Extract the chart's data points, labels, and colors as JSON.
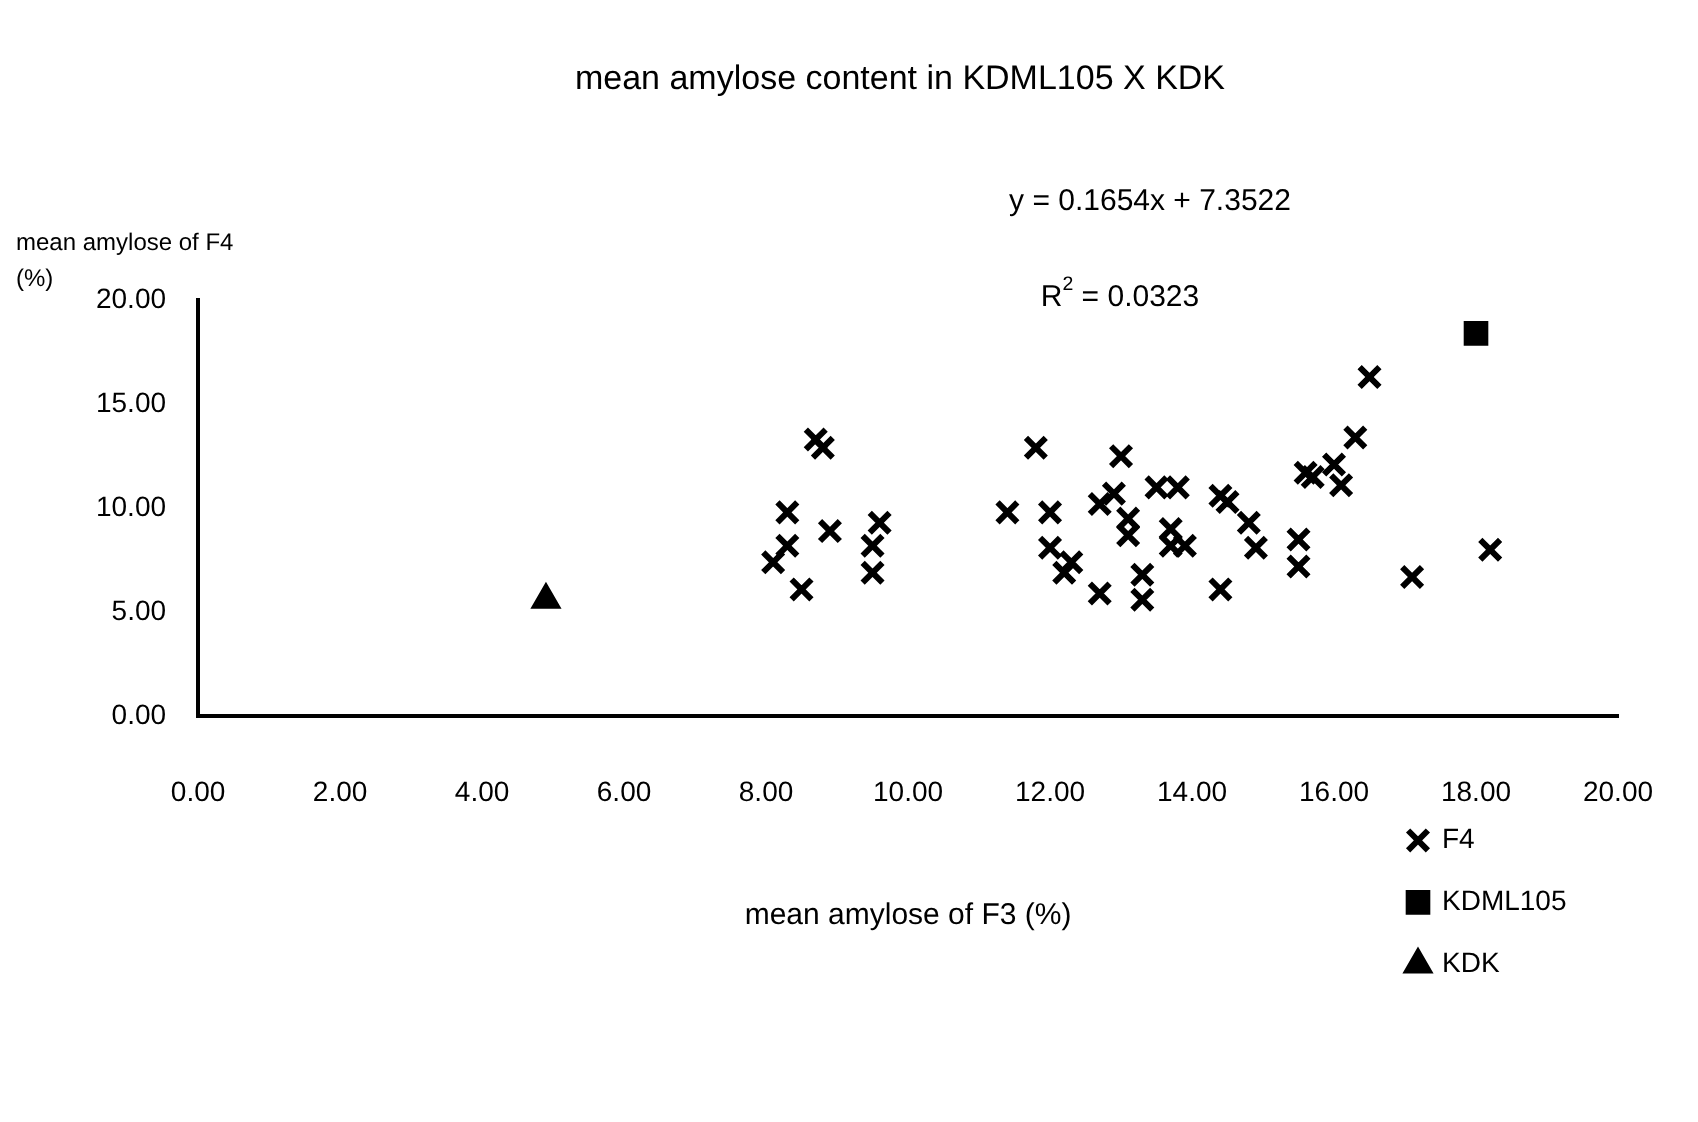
{
  "chart_data": {
    "type": "scatter",
    "title": "mean amylose content in KDML105 X KDK",
    "xlabel": "mean amylose of F3 (%)",
    "ylabel": "mean amylose of F4 (%)",
    "annotations": [
      "y = 0.1654x + 7.3522",
      "R$^{2}$ = 0.0323"
    ],
    "xlim": [
      0,
      20
    ],
    "xticks": [
      {
        "value": 0,
        "label": "0.00"
      },
      {
        "value": 2,
        "label": "2.00"
      },
      {
        "value": 4,
        "label": "4.00"
      },
      {
        "value": 6,
        "label": "6.00"
      },
      {
        "value": 8,
        "label": "8.00"
      },
      {
        "value": 10,
        "label": "10.00"
      },
      {
        "value": 12,
        "label": "12.00"
      },
      {
        "value": 14,
        "label": "14.00"
      },
      {
        "value": 16,
        "label": "16.00"
      },
      {
        "value": 18,
        "label": "18.00"
      },
      {
        "value": 20,
        "label": "20.00"
      }
    ],
    "ylim": [
      0,
      20
    ],
    "yticks": [
      {
        "value": 0,
        "label": "0.00"
      },
      {
        "value": 5,
        "label": "5.00"
      },
      {
        "value": 10,
        "label": "10.00"
      },
      {
        "value": 15,
        "label": "15.00"
      },
      {
        "value": 20,
        "label": "20.00"
      }
    ],
    "grid": false,
    "legend": "bottom right",
    "series": [
      {
        "name": "F4",
        "color": "#000000",
        "marker": "cross",
        "x": [
          8.7,
          8.8,
          8.3,
          8.9,
          9.6,
          9.5,
          9.5,
          8.3,
          8.1,
          8.5,
          11.8,
          11.4,
          12.0,
          13.0,
          12.0,
          12.3,
          12.2,
          12.7,
          13.3,
          13.3,
          14.4,
          12.7,
          12.9,
          13.1,
          13.1,
          13.5,
          13.8,
          13.7,
          13.7,
          13.9,
          14.4,
          14.5,
          16.5,
          16.3,
          15.6,
          15.7,
          16.0,
          16.1,
          14.8,
          14.9,
          15.5,
          15.5,
          17.1,
          18.2
        ],
        "values": [
          13.3,
          12.9,
          9.8,
          8.9,
          9.3,
          8.2,
          6.9,
          8.2,
          7.4,
          6.1,
          12.9,
          9.8,
          9.8,
          12.5,
          8.1,
          7.4,
          6.9,
          5.9,
          6.8,
          5.6,
          6.1,
          10.2,
          10.7,
          9.5,
          8.7,
          11.0,
          11.0,
          9.0,
          8.2,
          8.2,
          10.6,
          10.3,
          16.3,
          13.4,
          11.7,
          11.5,
          12.1,
          11.1,
          9.3,
          8.1,
          8.5,
          7.2,
          6.7,
          8.0
        ]
      },
      {
        "name": "KDML105",
        "color": "#000000",
        "marker": "square",
        "x": [
          18.0
        ],
        "values": [
          18.4
        ]
      },
      {
        "name": "KDK",
        "color": "#000000",
        "marker": "triangle",
        "x": [
          4.9
        ],
        "values": [
          5.6
        ]
      }
    ]
  }
}
